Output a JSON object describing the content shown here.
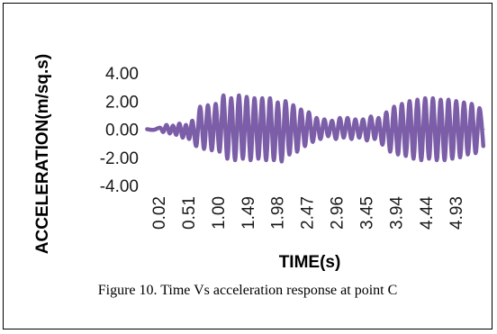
{
  "chart_data": {
    "type": "line",
    "title": "",
    "xlabel": "TIME(s)",
    "ylabel": "ACCELERATION(m/sq.s)",
    "ylim": [
      -4.0,
      4.0
    ],
    "y_ticks": [
      "4.00",
      "2.00",
      "0.00",
      "-2.00",
      "-4.00"
    ],
    "x_tick_labels": [
      "0.02",
      "0.51",
      "1.00",
      "1.49",
      "1.98",
      "2.47",
      "2.96",
      "3.45",
      "3.94",
      "4.44",
      "4.93"
    ],
    "xlim": [
      0.0,
      5.25
    ],
    "grid": false,
    "legend": "none",
    "series": [
      {
        "color": "#7b5ea7",
        "x": [
          0.02,
          0.12,
          0.22,
          0.27,
          0.32,
          0.37,
          0.42,
          0.47,
          0.52,
          0.57,
          0.62,
          0.67,
          0.72,
          0.78,
          0.84,
          0.9,
          0.96,
          1.02,
          1.08,
          1.14,
          1.2,
          1.26,
          1.32,
          1.38,
          1.44,
          1.5,
          1.56,
          1.62,
          1.68,
          1.74,
          1.8,
          1.86,
          1.92,
          1.98,
          2.04,
          2.1,
          2.16,
          2.22,
          2.28,
          2.34,
          2.4,
          2.46,
          2.52,
          2.58,
          2.64,
          2.7,
          2.76,
          2.82,
          2.88,
          2.94,
          3.0,
          3.06,
          3.12,
          3.18,
          3.24,
          3.3,
          3.36,
          3.42,
          3.48,
          3.54,
          3.6,
          3.66,
          3.72,
          3.78,
          3.84,
          3.9,
          3.96,
          4.02,
          4.08,
          4.14,
          4.2,
          4.26,
          4.32,
          4.38,
          4.44,
          4.5,
          4.56,
          4.62,
          4.68,
          4.74,
          4.8,
          4.86,
          4.92,
          4.98,
          5.04,
          5.1,
          5.16,
          5.22
        ],
        "y": [
          0.0,
          -0.05,
          0.1,
          -0.2,
          0.3,
          -0.3,
          0.25,
          -0.4,
          0.4,
          -0.6,
          0.3,
          -0.7,
          0.6,
          -1.2,
          1.6,
          -1.4,
          1.7,
          -1.5,
          1.8,
          -1.6,
          2.4,
          -2.1,
          2.2,
          -2.2,
          2.4,
          -2.1,
          2.3,
          -2.2,
          2.2,
          -2.1,
          2.2,
          -2.2,
          2.2,
          -2.2,
          1.9,
          -2.3,
          2.0,
          -1.8,
          1.7,
          -1.6,
          1.4,
          -1.2,
          1.2,
          -0.9,
          0.8,
          -0.7,
          0.7,
          -0.5,
          0.6,
          -0.7,
          0.8,
          -0.6,
          0.8,
          -0.7,
          0.7,
          -0.6,
          0.7,
          -0.8,
          0.9,
          -0.7,
          0.8,
          -1.1,
          1.2,
          -1.6,
          1.6,
          -1.8,
          1.8,
          -1.9,
          2.0,
          -2.1,
          2.1,
          -2.2,
          2.2,
          -2.1,
          2.2,
          -2.2,
          2.1,
          -2.2,
          2.1,
          -2.1,
          2.0,
          -2.0,
          1.9,
          -1.8,
          1.8,
          -1.7,
          1.5,
          -1.2
        ]
      }
    ]
  },
  "caption": "Figure 10. Time Vs acceleration response at point C"
}
